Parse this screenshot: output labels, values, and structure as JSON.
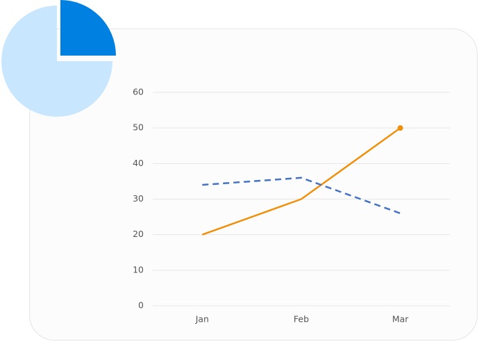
{
  "chart_data": {
    "type": "line",
    "categories": [
      "Jan",
      "Feb",
      "Mar"
    ],
    "series": [
      {
        "color": "#f0900a",
        "values": [
          20,
          30,
          50
        ],
        "markers": "last"
      },
      {
        "color": "#4472c4",
        "values": [
          34,
          36,
          26
        ],
        "dash": true
      }
    ],
    "ylim": [
      0,
      60
    ],
    "yticks": [
      0,
      10,
      20,
      30,
      40,
      50,
      60
    ],
    "grid": true
  }
}
